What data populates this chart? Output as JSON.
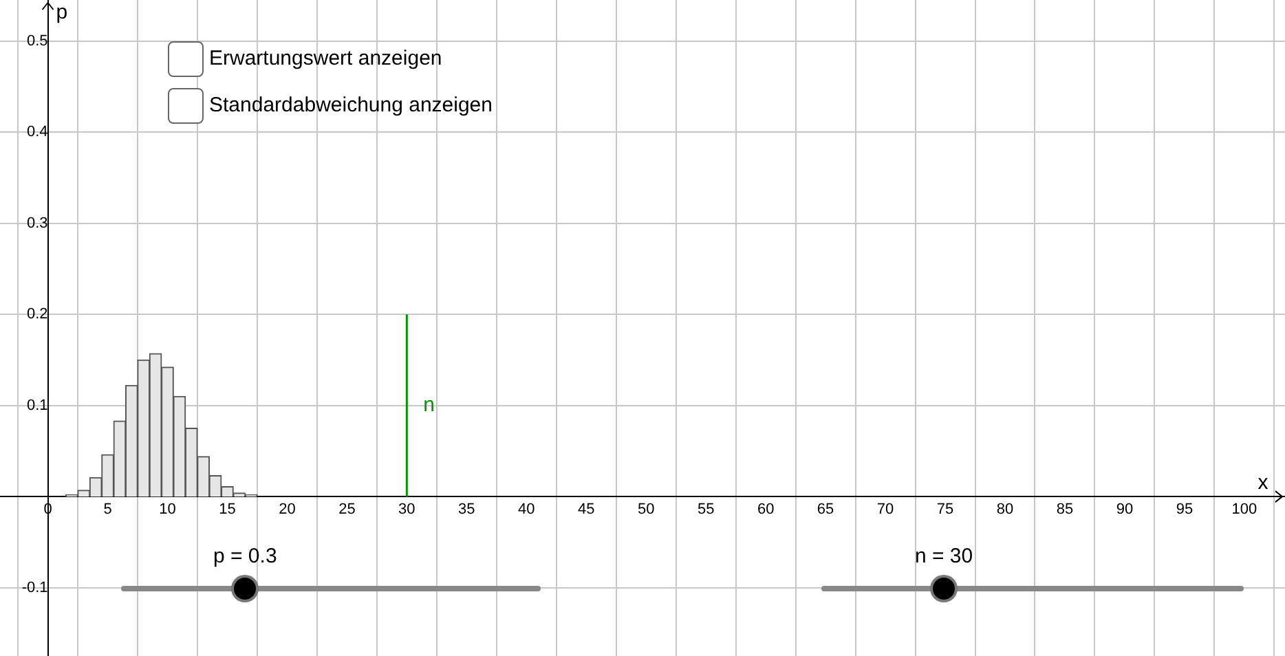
{
  "chart_data": {
    "type": "histogram",
    "xlabel": "x",
    "ylabel": "p",
    "xlim": [
      -4,
      103.4
    ],
    "ylim": [
      -0.175,
      0.545
    ],
    "xticks": [
      0,
      5,
      10,
      15,
      20,
      25,
      30,
      35,
      40,
      45,
      50,
      55,
      60,
      65,
      70,
      75,
      80,
      85,
      90,
      95,
      100
    ],
    "yticks": [
      -0.1,
      0.1,
      0.2,
      0.3,
      0.4,
      0.5
    ],
    "grid": true,
    "series": [
      {
        "color": "#e6e6e6",
        "bins": [
          -0.5,
          0.5,
          1.5,
          2.5,
          3.5,
          4.5,
          5.5,
          6.5,
          7.5,
          8.5,
          9.5,
          10.5,
          11.5,
          12.5,
          13.5,
          14.5,
          15.5,
          16.5,
          17.5,
          18.5,
          19.5,
          20.5,
          21.5,
          22.5,
          23.5,
          24.5,
          25.5,
          26.5,
          27.5,
          28.5,
          29.5,
          30.5
        ],
        "values": [
          0,
          0,
          0.002,
          0.007,
          0.021,
          0.046,
          0.083,
          0.122,
          0.15,
          0.157,
          0.142,
          0.11,
          0.075,
          0.044,
          0.023,
          0.011,
          0.004,
          0.002,
          0,
          0,
          0,
          0,
          0,
          0,
          0,
          0,
          0,
          0,
          0,
          0,
          0
        ]
      },
      {
        "type": "line",
        "name": "n",
        "color": "#009900",
        "x": [
          30,
          30
        ],
        "values": [
          0,
          0.2
        ]
      }
    ],
    "annotations": [
      "Erwartungswert anzeigen",
      "Standardabweichung anzeigen",
      "p = 0.3",
      "n = 30"
    ]
  }
}
